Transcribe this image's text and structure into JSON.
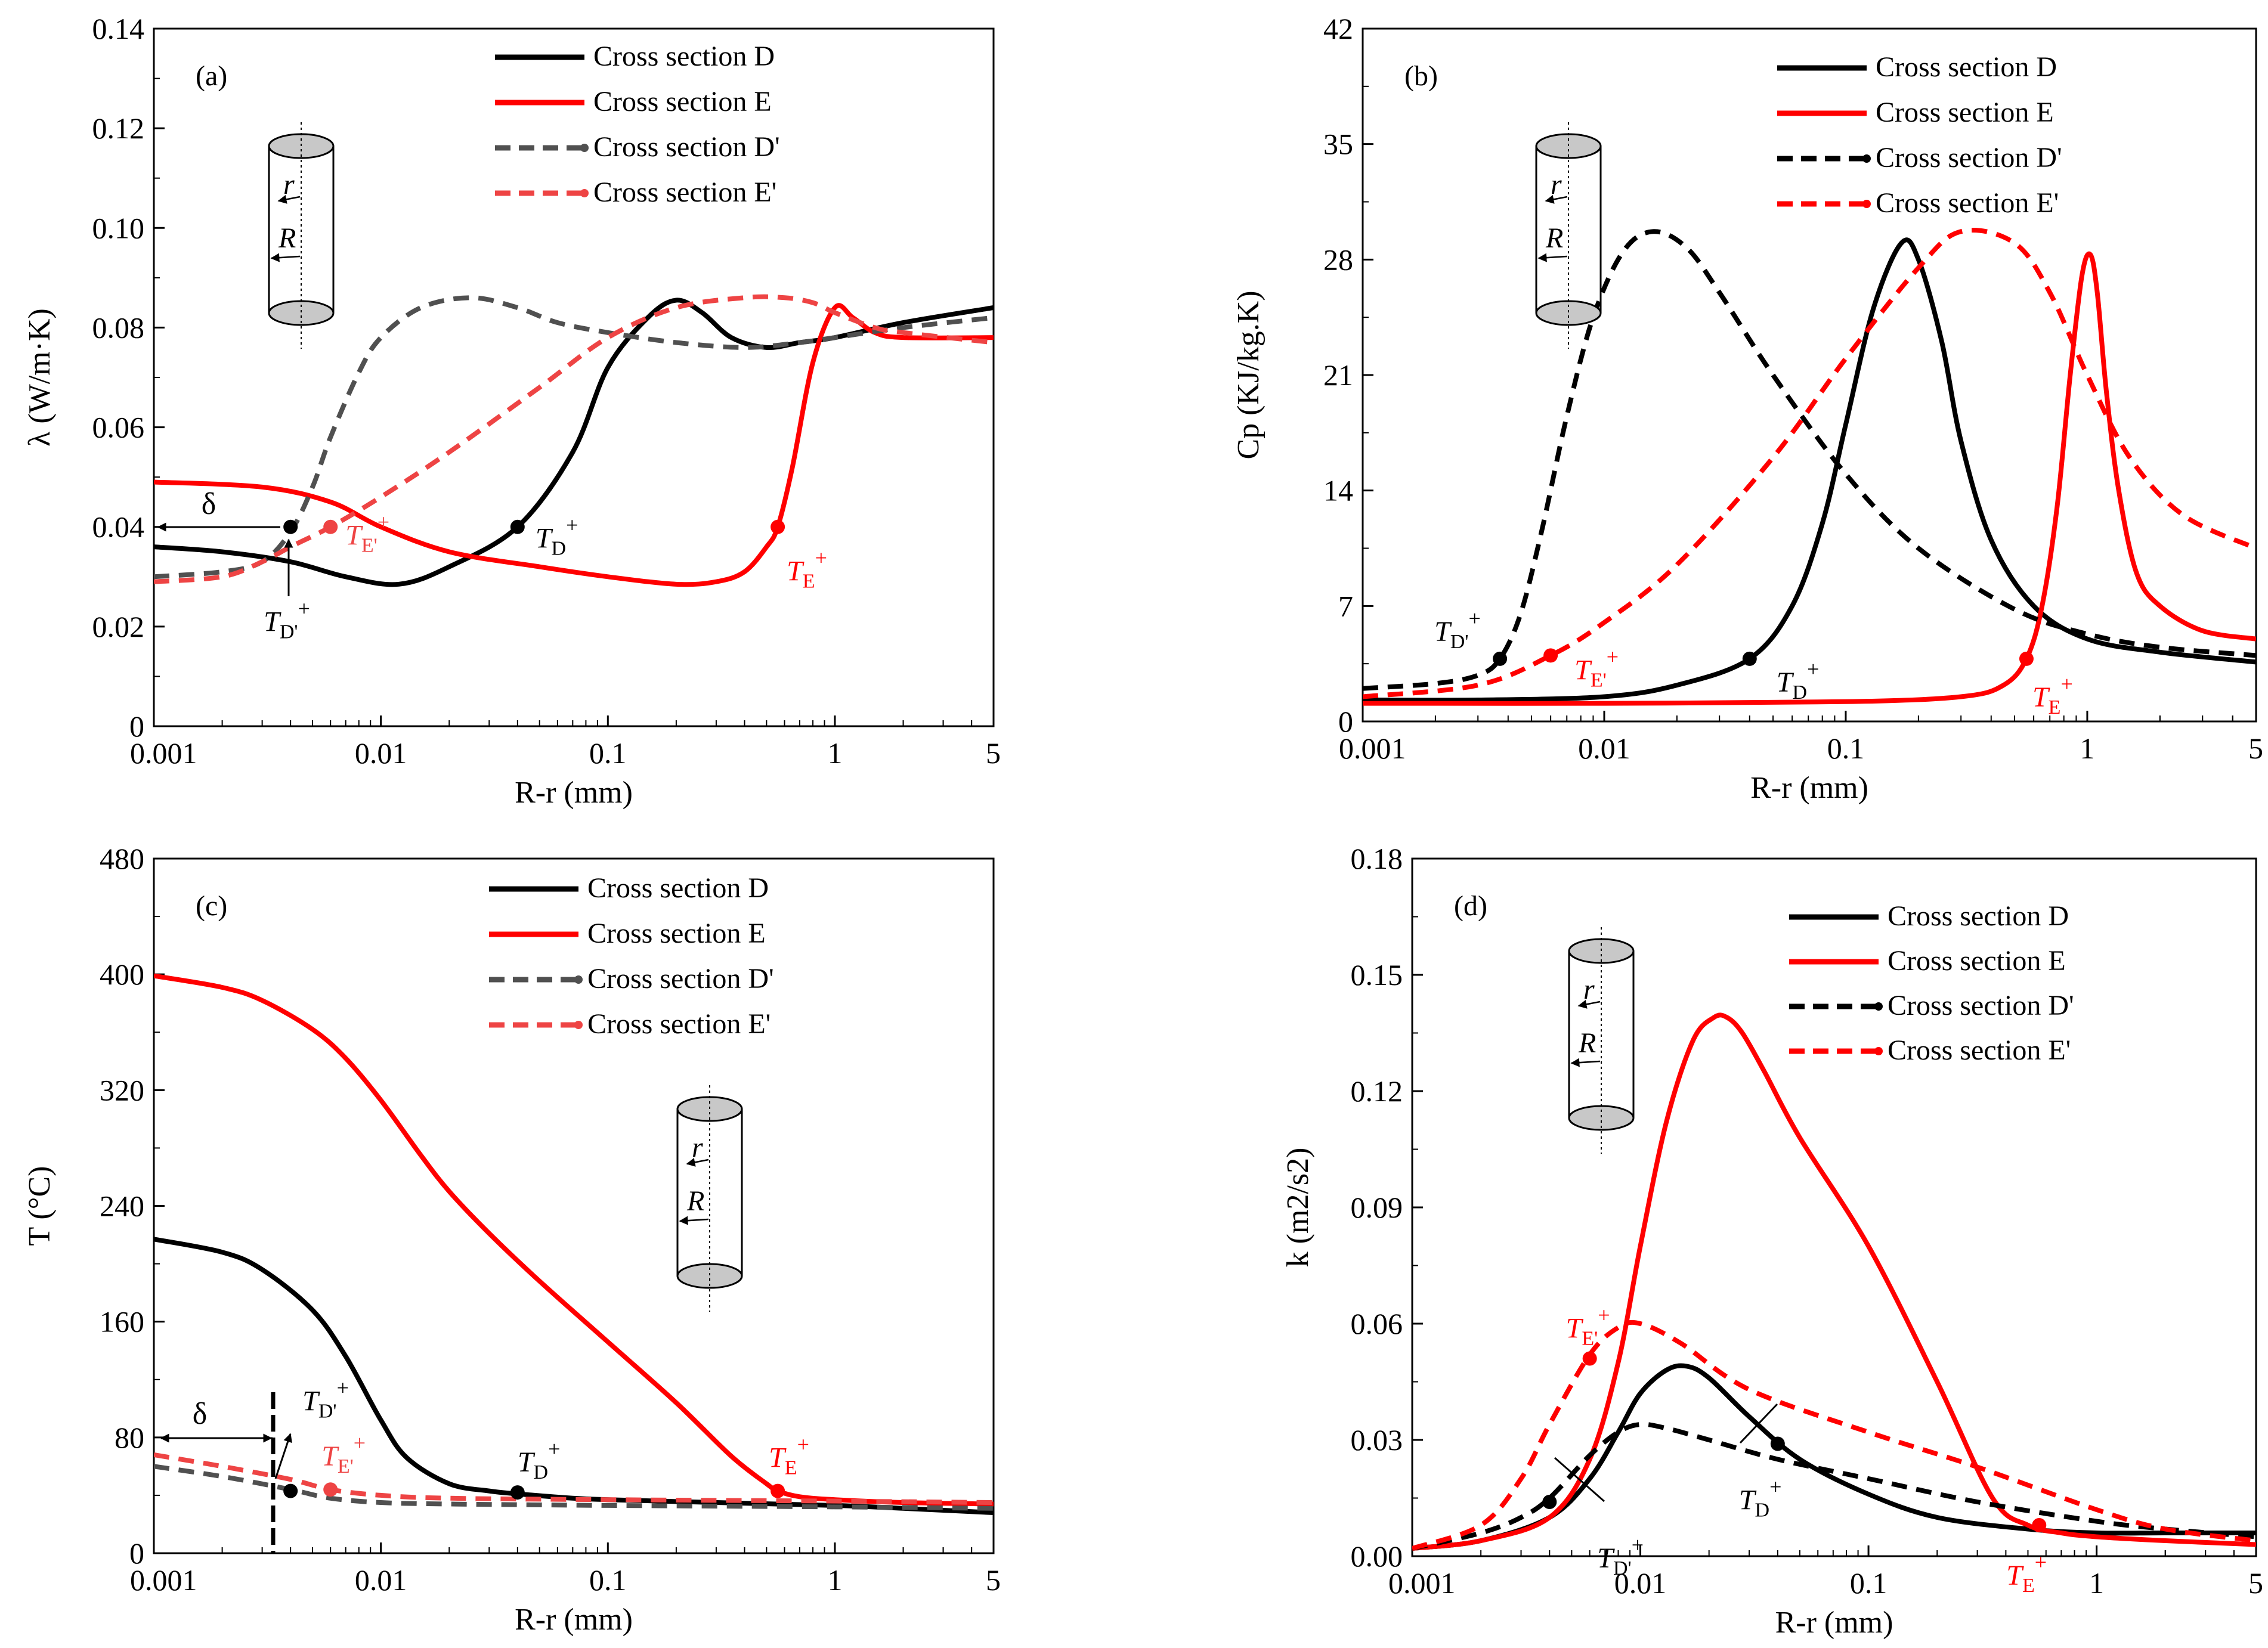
{
  "chart_data": [
    {
      "type": "line",
      "panel_label": "(a)",
      "xlabel": "R-r (mm)",
      "ylabel": "λ (W/m·K)",
      "xscale": "log",
      "xlim": [
        0.001,
        5
      ],
      "ylim": [
        0,
        0.14
      ],
      "xticks": [
        "0.001",
        "0.01",
        "0.1",
        "1",
        "5"
      ],
      "yticks": [
        "0",
        "0.02",
        "0.04",
        "0.06",
        "0.08",
        "0.10",
        "0.12",
        "0.14"
      ],
      "legend_position": "top-right",
      "series": [
        {
          "name": "Cross section D",
          "color": "#000000",
          "style": "solid",
          "x": [
            0.001,
            0.002,
            0.004,
            0.007,
            0.012,
            0.02,
            0.04,
            0.07,
            0.1,
            0.15,
            0.2,
            0.26,
            0.35,
            0.5,
            0.7,
            1,
            2,
            5
          ],
          "y": [
            0.036,
            0.035,
            0.033,
            0.03,
            0.0285,
            0.032,
            0.04,
            0.055,
            0.072,
            0.082,
            0.0855,
            0.083,
            0.078,
            0.076,
            0.077,
            0.078,
            0.081,
            0.084
          ]
        },
        {
          "name": "Cross section E",
          "color": "#ff0000",
          "style": "solid",
          "x": [
            0.001,
            0.003,
            0.006,
            0.01,
            0.02,
            0.05,
            0.1,
            0.2,
            0.3,
            0.4,
            0.5,
            0.56,
            0.65,
            0.8,
            1.0,
            1.2,
            1.5,
            2,
            5
          ],
          "y": [
            0.049,
            0.048,
            0.045,
            0.04,
            0.035,
            0.032,
            0.03,
            0.0285,
            0.029,
            0.031,
            0.036,
            0.04,
            0.052,
            0.073,
            0.084,
            0.082,
            0.079,
            0.078,
            0.078
          ]
        },
        {
          "name": "Cross section D'",
          "color": "#505050",
          "style": "dash",
          "x": [
            0.001,
            0.002,
            0.003,
            0.004,
            0.005,
            0.006,
            0.008,
            0.01,
            0.015,
            0.025,
            0.04,
            0.06,
            0.1,
            0.2,
            0.4,
            0.7,
            1,
            2,
            5
          ],
          "y": [
            0.03,
            0.031,
            0.033,
            0.039,
            0.048,
            0.058,
            0.071,
            0.078,
            0.084,
            0.086,
            0.084,
            0.081,
            0.079,
            0.077,
            0.076,
            0.077,
            0.078,
            0.08,
            0.082
          ]
        },
        {
          "name": "Cross section E'",
          "color": "#ee4444",
          "style": "dash",
          "x": [
            0.001,
            0.002,
            0.003,
            0.004,
            0.006,
            0.01,
            0.02,
            0.05,
            0.1,
            0.2,
            0.4,
            0.6,
            0.8,
            1.0,
            1.5,
            2,
            5
          ],
          "y": [
            0.029,
            0.03,
            0.033,
            0.036,
            0.04,
            0.046,
            0.055,
            0.068,
            0.078,
            0.084,
            0.086,
            0.086,
            0.085,
            0.083,
            0.08,
            0.079,
            0.077
          ]
        }
      ],
      "markers": [
        {
          "label": "TD+",
          "x": 0.04,
          "y": 0.04,
          "color": "#000000"
        },
        {
          "label": "TE+",
          "x": 0.56,
          "y": 0.04,
          "color": "#ff0000"
        },
        {
          "label": "TD'+",
          "x": 0.004,
          "y": 0.04,
          "color": "#000000"
        },
        {
          "label": "TE'+",
          "x": 0.006,
          "y": 0.04,
          "color": "#ee4444"
        }
      ]
    },
    {
      "type": "line",
      "panel_label": "(b)",
      "xlabel": "R-r (mm)",
      "ylabel": "Cp (KJ/kg.K)",
      "xscale": "log",
      "xlim": [
        0.001,
        5
      ],
      "ylim": [
        0,
        42
      ],
      "xticks": [
        "0.001",
        "0.01",
        "0.1",
        "1",
        "5"
      ],
      "yticks": [
        "0",
        "7",
        "14",
        "21",
        "28",
        "35",
        "42"
      ],
      "legend_position": "top-right",
      "series": [
        {
          "name": "Cross section D",
          "color": "#000000",
          "style": "solid",
          "x": [
            0.001,
            0.003,
            0.01,
            0.02,
            0.04,
            0.06,
            0.08,
            0.1,
            0.13,
            0.17,
            0.2,
            0.25,
            0.3,
            0.4,
            0.6,
            1,
            2,
            5
          ],
          "y": [
            1.3,
            1.3,
            1.5,
            2.2,
            3.8,
            7,
            12,
            18,
            25,
            29,
            28,
            23,
            17,
            11,
            7,
            5,
            4.2,
            3.6
          ]
        },
        {
          "name": "Cross section E",
          "color": "#ff0000",
          "style": "solid",
          "x": [
            0.001,
            0.01,
            0.1,
            0.3,
            0.45,
            0.56,
            0.65,
            0.75,
            0.85,
            0.95,
            1.03,
            1.1,
            1.2,
            1.35,
            1.6,
            2,
            3,
            5
          ],
          "y": [
            1.1,
            1.1,
            1.2,
            1.5,
            2.2,
            3.8,
            7,
            13,
            21,
            27,
            28.3,
            26,
            20,
            14,
            9,
            7,
            5.5,
            5
          ]
        },
        {
          "name": "Cross section D'",
          "color": "#000000",
          "style": "dash",
          "x": [
            0.001,
            0.002,
            0.003,
            0.0037,
            0.0045,
            0.0055,
            0.007,
            0.009,
            0.012,
            0.016,
            0.022,
            0.03,
            0.05,
            0.1,
            0.2,
            0.5,
            1,
            2,
            5
          ],
          "y": [
            2,
            2.3,
            2.8,
            3.8,
            6.5,
            11.5,
            18.5,
            24.5,
            28.5,
            29.7,
            28.7,
            26,
            21,
            15,
            10.5,
            6.8,
            5.3,
            4.5,
            4
          ]
        },
        {
          "name": "Cross section E'",
          "color": "#ff0000",
          "style": "dash",
          "x": [
            0.001,
            0.003,
            0.006,
            0.01,
            0.02,
            0.05,
            0.1,
            0.2,
            0.3,
            0.5,
            0.7,
            1,
            1.5,
            2.5,
            5
          ],
          "y": [
            1.5,
            2.2,
            4,
            6,
            9.5,
            16,
            22,
            27.5,
            29.7,
            29,
            26,
            21,
            16,
            12.5,
            10.5
          ]
        }
      ],
      "markers": [
        {
          "label": "TD+",
          "x": 0.04,
          "y": 3.8,
          "color": "#000000"
        },
        {
          "label": "TE+",
          "x": 0.56,
          "y": 3.8,
          "color": "#ff0000"
        },
        {
          "label": "TD'+",
          "x": 0.0037,
          "y": 3.8,
          "color": "#000000"
        },
        {
          "label": "TE'+",
          "x": 0.006,
          "y": 4.0,
          "color": "#ff0000"
        }
      ]
    },
    {
      "type": "line",
      "panel_label": "(c)",
      "xlabel": "R-r (mm)",
      "ylabel": "T (°C)",
      "xscale": "log",
      "xlim": [
        0.001,
        5
      ],
      "ylim": [
        0,
        480
      ],
      "xticks": [
        "0.001",
        "0.01",
        "0.1",
        "1",
        "5"
      ],
      "yticks": [
        "0",
        "80",
        "160",
        "240",
        "320",
        "400",
        "480"
      ],
      "legend_position": "top-right",
      "series": [
        {
          "name": "Cross section D",
          "color": "#000000",
          "style": "solid",
          "x": [
            0.001,
            0.002,
            0.003,
            0.005,
            0.007,
            0.01,
            0.013,
            0.02,
            0.03,
            0.04,
            0.07,
            0.1,
            0.3,
            1,
            2,
            5
          ],
          "y": [
            217,
            208,
            196,
            168,
            136,
            92,
            66,
            48,
            43,
            41,
            38,
            37,
            35,
            33,
            31,
            28
          ]
        },
        {
          "name": "Cross section E",
          "color": "#ff0000",
          "style": "solid",
          "x": [
            0.001,
            0.002,
            0.003,
            0.005,
            0.007,
            0.01,
            0.015,
            0.02,
            0.03,
            0.05,
            0.1,
            0.2,
            0.35,
            0.5,
            0.56,
            0.7,
            1,
            2,
            5
          ],
          "y": [
            399,
            391,
            382,
            362,
            342,
            313,
            275,
            250,
            221,
            188,
            146,
            104,
            67,
            48,
            43,
            39,
            37,
            35,
            34
          ]
        },
        {
          "name": "Cross section D'",
          "color": "#505050",
          "style": "dash",
          "x": [
            0.001,
            0.002,
            0.004,
            0.006,
            0.01,
            0.02,
            0.1,
            1,
            5
          ],
          "y": [
            60,
            53,
            44,
            38,
            35,
            34,
            33,
            32,
            31
          ]
        },
        {
          "name": "Cross section E'",
          "color": "#ee4444",
          "style": "dash",
          "x": [
            0.001,
            0.002,
            0.004,
            0.006,
            0.01,
            0.02,
            0.1,
            1,
            5
          ],
          "y": [
            68,
            60,
            51,
            44,
            40,
            38,
            37,
            36,
            35
          ]
        }
      ],
      "markers": [
        {
          "label": "TD+",
          "x": 0.04,
          "y": 42,
          "color": "#000000"
        },
        {
          "label": "TE+",
          "x": 0.56,
          "y": 43,
          "color": "#ff0000"
        },
        {
          "label": "TD'+",
          "x": 0.004,
          "y": 43,
          "color": "#000000"
        },
        {
          "label": "TE'+",
          "x": 0.006,
          "y": 44,
          "color": "#ee4444"
        }
      ]
    },
    {
      "type": "line",
      "panel_label": "(d)",
      "xlabel": "R-r (mm)",
      "ylabel": "k (m2/s2)",
      "xscale": "log",
      "xlim": [
        0.001,
        5
      ],
      "ylim": [
        0,
        0.18
      ],
      "xticks": [
        "0.001",
        "0.01",
        "0.1",
        "1",
        "5"
      ],
      "yticks": [
        "0.00",
        "0.03",
        "0.06",
        "0.09",
        "0.12",
        "0.15",
        "0.18"
      ],
      "legend_position": "top-right",
      "series": [
        {
          "name": "Cross section D",
          "color": "#000000",
          "style": "solid",
          "x": [
            0.001,
            0.002,
            0.004,
            0.006,
            0.008,
            0.01,
            0.013,
            0.016,
            0.02,
            0.03,
            0.05,
            0.1,
            0.2,
            0.5,
            1,
            2,
            5
          ],
          "y": [
            0.002,
            0.004,
            0.01,
            0.02,
            0.032,
            0.042,
            0.048,
            0.049,
            0.046,
            0.036,
            0.025,
            0.016,
            0.01,
            0.007,
            0.006,
            0.006,
            0.006
          ]
        },
        {
          "name": "Cross section E",
          "color": "#ff0000",
          "style": "solid",
          "x": [
            0.001,
            0.002,
            0.004,
            0.006,
            0.008,
            0.01,
            0.013,
            0.017,
            0.021,
            0.024,
            0.028,
            0.035,
            0.05,
            0.1,
            0.2,
            0.35,
            0.5,
            0.7,
            1,
            2,
            5
          ],
          "y": [
            0.002,
            0.004,
            0.01,
            0.025,
            0.05,
            0.08,
            0.112,
            0.133,
            0.139,
            0.139,
            0.135,
            0.125,
            0.108,
            0.08,
            0.045,
            0.015,
            0.008,
            0.006,
            0.005,
            0.004,
            0.003
          ]
        },
        {
          "name": "Cross section D'",
          "color": "#000000",
          "style": "dash",
          "x": [
            0.001,
            0.002,
            0.003,
            0.004,
            0.006,
            0.008,
            0.01,
            0.013,
            0.02,
            0.04,
            0.1,
            0.3,
            1,
            2,
            5
          ],
          "y": [
            0.002,
            0.006,
            0.01,
            0.015,
            0.026,
            0.032,
            0.034,
            0.033,
            0.03,
            0.025,
            0.02,
            0.014,
            0.009,
            0.007,
            0.005
          ]
        },
        {
          "name": "Cross section E'",
          "color": "#ff0000",
          "style": "dash",
          "x": [
            0.001,
            0.002,
            0.003,
            0.004,
            0.006,
            0.008,
            0.01,
            0.015,
            0.03,
            0.1,
            0.3,
            1,
            2,
            5
          ],
          "y": [
            0.002,
            0.008,
            0.02,
            0.034,
            0.052,
            0.059,
            0.06,
            0.055,
            0.043,
            0.032,
            0.023,
            0.012,
            0.007,
            0.004
          ]
        }
      ],
      "markers": [
        {
          "label": "TD+",
          "x": 0.04,
          "y": 0.029,
          "color": "#000000"
        },
        {
          "label": "TE+",
          "x": 0.56,
          "y": 0.008,
          "color": "#ff0000"
        },
        {
          "label": "TD'+",
          "x": 0.004,
          "y": 0.014,
          "color": "#000000"
        },
        {
          "label": "TE'+",
          "x": 0.006,
          "y": 0.051,
          "color": "#ff0000"
        }
      ]
    }
  ],
  "annotations": {
    "delta": "δ",
    "inset_r": "r",
    "inset_R": "R",
    "sub_D": "D",
    "sub_E": "E",
    "sub_Dp": "D'",
    "sub_Ep": "E'",
    "T_letter": "T",
    "plus": "+"
  }
}
